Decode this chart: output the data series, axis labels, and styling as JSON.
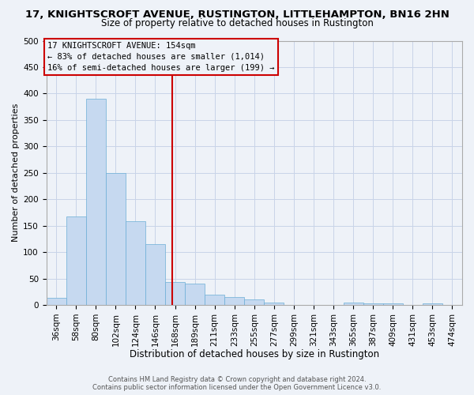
{
  "title_line1": "17, KNIGHTSCROFT AVENUE, RUSTINGTON, LITTLEHAMPTON, BN16 2HN",
  "title_line2": "Size of property relative to detached houses in Rustington",
  "xlabel": "Distribution of detached houses by size in Rustington",
  "ylabel": "Number of detached properties",
  "bar_labels": [
    "36sqm",
    "58sqm",
    "80sqm",
    "102sqm",
    "124sqm",
    "146sqm",
    "168sqm",
    "189sqm",
    "211sqm",
    "233sqm",
    "255sqm",
    "277sqm",
    "299sqm",
    "321sqm",
    "343sqm",
    "365sqm",
    "387sqm",
    "409sqm",
    "431sqm",
    "453sqm",
    "474sqm"
  ],
  "bar_values": [
    13,
    167,
    390,
    250,
    158,
    115,
    44,
    40,
    20,
    15,
    10,
    5,
    0,
    0,
    0,
    5,
    3,
    3,
    0,
    3
  ],
  "bar_color": "#c6d9f0",
  "bar_edgecolor": "#6baed6",
  "vline_color": "#cc0000",
  "ylim": [
    0,
    500
  ],
  "yticks": [
    0,
    50,
    100,
    150,
    200,
    250,
    300,
    350,
    400,
    450,
    500
  ],
  "annotation_title": "17 KNIGHTSCROFT AVENUE: 154sqm",
  "annotation_line2": "← 83% of detached houses are smaller (1,014)",
  "annotation_line3": "16% of semi-detached houses are larger (199) →",
  "annotation_box_color": "#cc0000",
  "footer_line1": "Contains HM Land Registry data © Crown copyright and database right 2024.",
  "footer_line2": "Contains public sector information licensed under the Open Government Licence v3.0.",
  "background_color": "#eef2f8",
  "grid_color": "#c8d4e8",
  "title1_fontsize": 9.5,
  "title2_fontsize": 8.5,
  "xlabel_fontsize": 8.5,
  "ylabel_fontsize": 8.0,
  "tick_fontsize": 7.5,
  "annot_fontsize": 7.5,
  "footer_fontsize": 6.0
}
